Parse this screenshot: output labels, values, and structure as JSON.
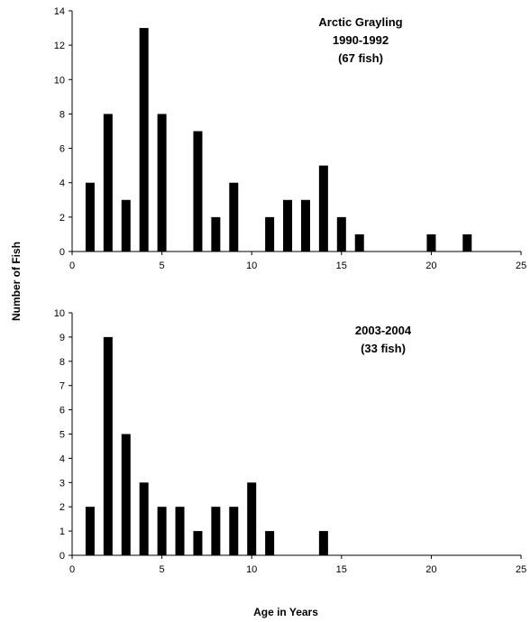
{
  "ylabel": "Number of Fish",
  "xlabel": "Age in Years",
  "chart_data": [
    {
      "type": "bar",
      "annotation": [
        "Arctic Grayling",
        "1990-1992",
        "(67 fish)"
      ],
      "xlim": [
        0,
        25
      ],
      "ylim": [
        0,
        14
      ],
      "x_ticks": [
        0,
        5,
        10,
        15,
        20,
        25
      ],
      "y_ticks": [
        0,
        2,
        4,
        6,
        8,
        10,
        12,
        14
      ],
      "x": [
        1,
        2,
        3,
        4,
        5,
        7,
        8,
        9,
        11,
        12,
        13,
        14,
        15,
        16,
        20,
        22
      ],
      "values": [
        4,
        8,
        3,
        13,
        8,
        7,
        2,
        4,
        2,
        3,
        3,
        5,
        2,
        1,
        1,
        1
      ],
      "color": "#000000"
    },
    {
      "type": "bar",
      "annotation": [
        "2003-2004",
        "(33 fish)"
      ],
      "xlim": [
        0,
        25
      ],
      "ylim": [
        0,
        10
      ],
      "x_ticks": [
        0,
        5,
        10,
        15,
        20,
        25
      ],
      "y_ticks": [
        0,
        1,
        2,
        3,
        4,
        5,
        6,
        7,
        8,
        9,
        10
      ],
      "x": [
        1,
        2,
        3,
        4,
        5,
        6,
        7,
        8,
        9,
        10,
        11,
        14
      ],
      "values": [
        2,
        9,
        5,
        3,
        2,
        2,
        1,
        2,
        2,
        3,
        1,
        1
      ],
      "color": "#000000"
    }
  ]
}
